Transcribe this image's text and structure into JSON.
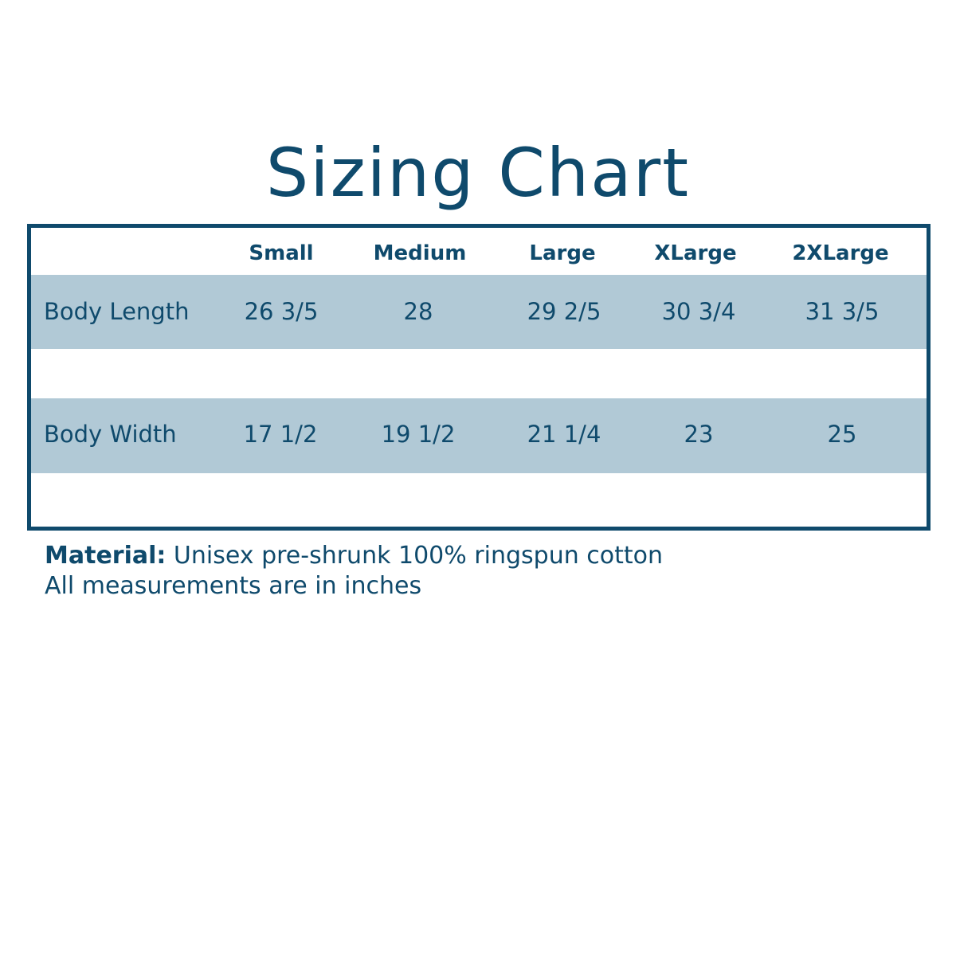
{
  "title": "Sizing Chart",
  "colors": {
    "primary": "#0f4a6c",
    "row_band": "#b1c9d6"
  },
  "table": {
    "columns": [
      "Small",
      "Medium",
      "Large",
      "XLarge",
      "2XLarge"
    ],
    "rows": [
      {
        "label": "Body Length",
        "values": [
          "26 3/5",
          "28",
          "29 2/5",
          "30 3/4",
          "31 3/5"
        ]
      },
      {
        "label": "Body Width",
        "values": [
          "17 1/2",
          "19 1/2",
          "21 1/4",
          "23",
          "25"
        ]
      }
    ]
  },
  "notes": {
    "material_label": "Material:",
    "material_text": " Unisex pre-shrunk 100% ringspun cotton",
    "units": "All measurements are in inches"
  }
}
